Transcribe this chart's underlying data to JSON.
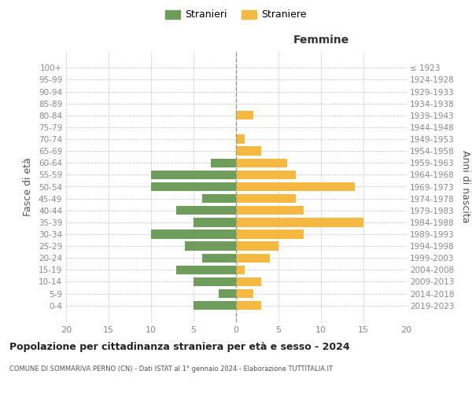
{
  "age_groups": [
    "0-4",
    "5-9",
    "10-14",
    "15-19",
    "20-24",
    "25-29",
    "30-34",
    "35-39",
    "40-44",
    "45-49",
    "50-54",
    "55-59",
    "60-64",
    "65-69",
    "70-74",
    "75-79",
    "80-84",
    "85-89",
    "90-94",
    "95-99",
    "100+"
  ],
  "birth_years": [
    "2019-2023",
    "2014-2018",
    "2009-2013",
    "2004-2008",
    "1999-2003",
    "1994-1998",
    "1989-1993",
    "1984-1988",
    "1979-1983",
    "1974-1978",
    "1969-1973",
    "1964-1968",
    "1959-1963",
    "1954-1958",
    "1949-1953",
    "1944-1948",
    "1939-1943",
    "1934-1938",
    "1929-1933",
    "1924-1928",
    "≤ 1923"
  ],
  "males": [
    5,
    2,
    5,
    7,
    4,
    6,
    10,
    5,
    7,
    4,
    10,
    10,
    3,
    0,
    0,
    0,
    0,
    0,
    0,
    0,
    0
  ],
  "females": [
    3,
    2,
    3,
    1,
    4,
    5,
    8,
    15,
    8,
    7,
    14,
    7,
    6,
    3,
    1,
    0,
    2,
    0,
    0,
    0,
    0
  ],
  "male_color": "#6d9c5b",
  "female_color": "#f5b942",
  "title": "Popolazione per cittadinanza straniera per età e sesso - 2024",
  "subtitle": "COMUNE DI SOMMARIVA PERNO (CN) - Dati ISTAT al 1° gennaio 2024 - Elaborazione TUTTITALIA.IT",
  "ylabel_left": "Fasce di età",
  "ylabel_right": "Anni di nascita",
  "xlabel_right": "Femmine",
  "legend_stranieri": "Stranieri",
  "legend_straniere": "Straniere",
  "xlim": 20,
  "background_color": "#ffffff",
  "grid_color": "#cccccc",
  "axis_label_color": "#555555",
  "tick_color": "#888888"
}
